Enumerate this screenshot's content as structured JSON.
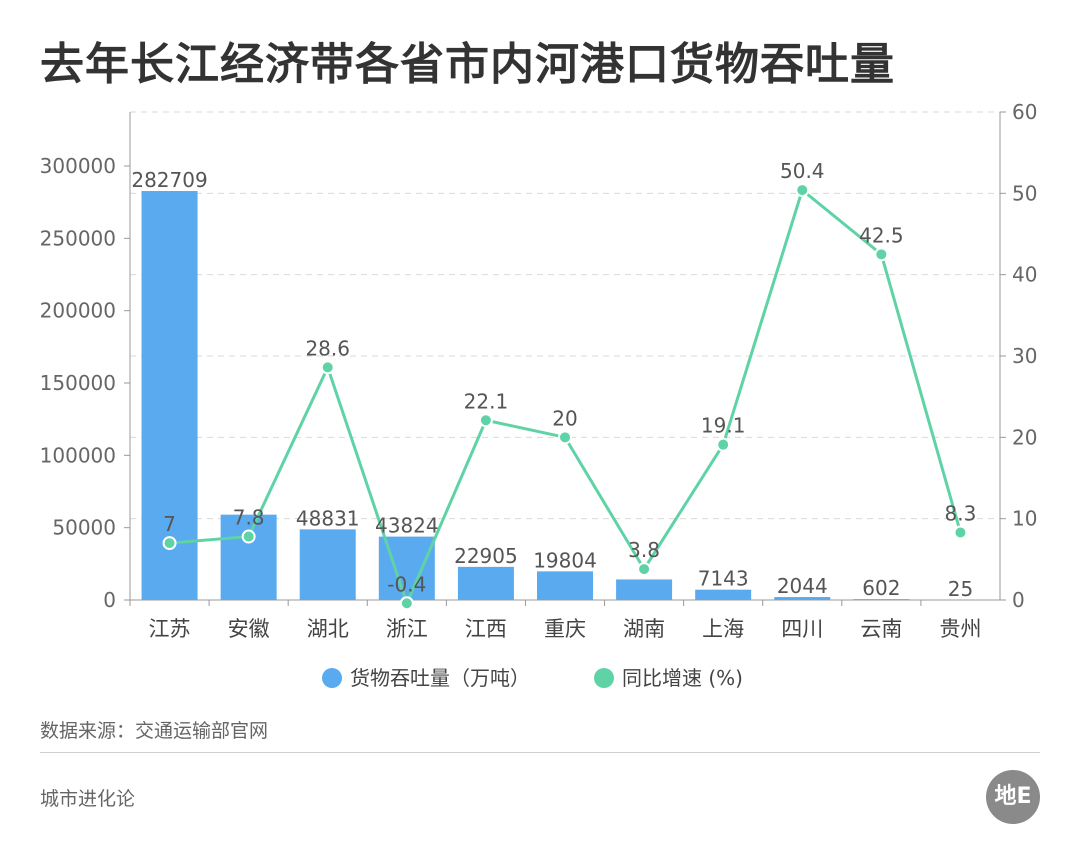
{
  "title": "去年长江经济带各省市内河港口货物吞吐量",
  "source": "数据来源：交通运输部官网",
  "brand": "城市进化论",
  "logo_text": "地E",
  "colors": {
    "bar": "#5aaaf0",
    "line": "#5fd3a6",
    "grid": "#d9d9d9",
    "axis": "#999999"
  },
  "chart_data": {
    "type": "bar",
    "categories": [
      "江苏",
      "安徽",
      "湖北",
      "浙江",
      "江西",
      "重庆",
      "湖南",
      "上海",
      "四川",
      "云南",
      "贵州"
    ],
    "series": [
      {
        "name": "货物吞吐量（万吨）",
        "type": "bar",
        "axis": "left",
        "values": [
          282709,
          59000,
          48831,
          43824,
          22905,
          19804,
          14200,
          7143,
          2044,
          602,
          25
        ],
        "labels": [
          "282709",
          "",
          "48831",
          "43824",
          "22905",
          "19804",
          "",
          "7143",
          "2044",
          "602",
          "25"
        ]
      },
      {
        "name": "同比增速 (%)",
        "type": "line",
        "axis": "right",
        "values": [
          7,
          7.8,
          28.6,
          -0.4,
          22.1,
          20,
          3.8,
          19.1,
          50.4,
          42.5,
          8.3
        ],
        "labels": [
          "7",
          "7.8",
          "28.6",
          "-0.4",
          "22.1",
          "20",
          "3.8",
          "19.1",
          "50.4",
          "42.5",
          "8.3"
        ]
      }
    ],
    "left_axis": {
      "min": 0,
      "max": 300000,
      "ticks": [
        "0",
        "50000",
        "100000",
        "150000",
        "200000",
        "250000",
        "300000"
      ]
    },
    "right_axis": {
      "min": 0,
      "max": 60,
      "ticks": [
        "0",
        "10",
        "20",
        "30",
        "40",
        "50",
        "60"
      ]
    },
    "grid": true,
    "legend_position": "bottom"
  }
}
